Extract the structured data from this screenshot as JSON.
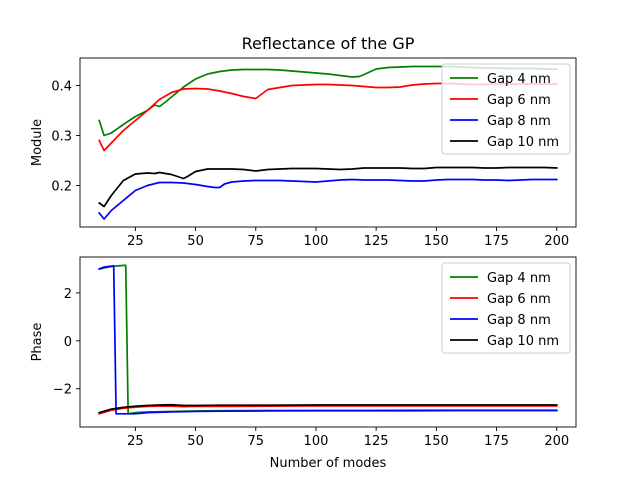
{
  "chart_data": [
    {
      "type": "line",
      "title": "Reflectance of the GP",
      "xlabel": "",
      "ylabel": "Module",
      "xlim": [
        2,
        208
      ],
      "ylim": [
        0.117,
        0.455
      ],
      "xticks": [
        25,
        50,
        75,
        100,
        125,
        150,
        175,
        200
      ],
      "yticks": [
        0.2,
        0.3,
        0.4
      ],
      "ytick_labels": [
        "0.2",
        "0.3",
        "0.4"
      ],
      "grid": false,
      "legend_position": "top-right",
      "colors": {
        "Gap 4 nm": "#008000",
        "Gap 6 nm": "#ff0000",
        "Gap 8 nm": "#0000ff",
        "Gap 10 nm": "#000000"
      },
      "series": [
        {
          "name": "Gap 4 nm",
          "x": [
            10,
            12,
            15,
            20,
            25,
            30,
            33,
            35,
            37,
            40,
            45,
            50,
            55,
            60,
            65,
            70,
            75,
            80,
            85,
            90,
            95,
            100,
            105,
            110,
            115,
            118,
            120,
            125,
            130,
            135,
            140,
            145,
            150,
            155,
            160,
            165,
            170,
            175,
            180,
            185,
            190,
            195,
            200
          ],
          "y": [
            0.33,
            0.3,
            0.305,
            0.322,
            0.338,
            0.35,
            0.361,
            0.358,
            0.365,
            0.377,
            0.397,
            0.413,
            0.423,
            0.428,
            0.431,
            0.432,
            0.432,
            0.432,
            0.431,
            0.429,
            0.427,
            0.425,
            0.423,
            0.42,
            0.417,
            0.418,
            0.422,
            0.433,
            0.436,
            0.437,
            0.438,
            0.438,
            0.438,
            0.438,
            0.437,
            0.436,
            0.435,
            0.435,
            0.434,
            0.434,
            0.434,
            0.433,
            0.433
          ]
        },
        {
          "name": "Gap 6 nm",
          "x": [
            10,
            12,
            15,
            20,
            25,
            30,
            35,
            40,
            45,
            50,
            55,
            60,
            65,
            70,
            75,
            80,
            85,
            90,
            95,
            100,
            105,
            110,
            115,
            120,
            125,
            130,
            135,
            140,
            145,
            150,
            155,
            160,
            165,
            170,
            175,
            180,
            185,
            190,
            195,
            200
          ],
          "y": [
            0.29,
            0.27,
            0.285,
            0.31,
            0.33,
            0.35,
            0.372,
            0.386,
            0.393,
            0.394,
            0.393,
            0.389,
            0.384,
            0.378,
            0.374,
            0.392,
            0.396,
            0.4,
            0.401,
            0.402,
            0.402,
            0.401,
            0.4,
            0.398,
            0.396,
            0.396,
            0.397,
            0.401,
            0.403,
            0.404,
            0.404,
            0.403,
            0.402,
            0.402,
            0.403,
            0.403,
            0.403,
            0.403,
            0.403,
            0.403
          ]
        },
        {
          "name": "Gap 8 nm",
          "x": [
            10,
            12,
            15,
            20,
            25,
            30,
            35,
            40,
            45,
            50,
            55,
            58,
            60,
            62,
            65,
            70,
            75,
            80,
            85,
            90,
            95,
            100,
            105,
            110,
            115,
            120,
            125,
            130,
            135,
            140,
            145,
            150,
            155,
            160,
            165,
            170,
            175,
            180,
            185,
            190,
            195,
            200
          ],
          "y": [
            0.145,
            0.133,
            0.15,
            0.17,
            0.19,
            0.2,
            0.206,
            0.206,
            0.205,
            0.202,
            0.198,
            0.196,
            0.196,
            0.203,
            0.207,
            0.209,
            0.21,
            0.21,
            0.21,
            0.209,
            0.208,
            0.207,
            0.209,
            0.211,
            0.212,
            0.211,
            0.211,
            0.211,
            0.21,
            0.209,
            0.209,
            0.211,
            0.212,
            0.212,
            0.212,
            0.211,
            0.211,
            0.21,
            0.211,
            0.212,
            0.212,
            0.212
          ]
        },
        {
          "name": "Gap 10 nm",
          "x": [
            10,
            12,
            15,
            20,
            25,
            30,
            33,
            35,
            40,
            45,
            47,
            50,
            55,
            60,
            65,
            70,
            75,
            80,
            85,
            90,
            95,
            100,
            105,
            110,
            115,
            120,
            125,
            130,
            135,
            140,
            145,
            150,
            155,
            160,
            165,
            170,
            175,
            180,
            185,
            190,
            195,
            200
          ],
          "y": [
            0.165,
            0.158,
            0.18,
            0.21,
            0.223,
            0.225,
            0.224,
            0.226,
            0.222,
            0.214,
            0.219,
            0.228,
            0.233,
            0.233,
            0.233,
            0.232,
            0.229,
            0.232,
            0.233,
            0.234,
            0.234,
            0.234,
            0.233,
            0.232,
            0.233,
            0.235,
            0.235,
            0.235,
            0.235,
            0.234,
            0.234,
            0.236,
            0.236,
            0.236,
            0.236,
            0.235,
            0.235,
            0.236,
            0.236,
            0.236,
            0.236,
            0.235
          ]
        }
      ]
    },
    {
      "type": "line",
      "title": "",
      "xlabel": "Number of modes",
      "ylabel": "Phase",
      "xlim": [
        2,
        208
      ],
      "ylim": [
        -3.6,
        3.5
      ],
      "xticks": [
        25,
        50,
        75,
        100,
        125,
        150,
        175,
        200
      ],
      "yticks": [
        -2,
        0,
        2
      ],
      "ytick_labels": [
        "−2",
        "0",
        "2"
      ],
      "grid": false,
      "legend_position": "top-right",
      "colors": {
        "Gap 4 nm": "#008000",
        "Gap 6 nm": "#ff0000",
        "Gap 8 nm": "#0000ff",
        "Gap 10 nm": "#000000"
      },
      "series": [
        {
          "name": "Gap 4 nm",
          "x": [
            10,
            15,
            20,
            21,
            22,
            25,
            30,
            40,
            50,
            60,
            80,
            100,
            120,
            140,
            160,
            180,
            200
          ],
          "y": [
            3.0,
            3.1,
            3.15,
            3.15,
            -3.05,
            -3.0,
            -2.97,
            -2.95,
            -2.93,
            -2.92,
            -2.91,
            -2.91,
            -2.91,
            -2.9,
            -2.9,
            -2.9,
            -2.9
          ]
        },
        {
          "name": "Gap 6 nm",
          "x": [
            10,
            15,
            20,
            25,
            30,
            35,
            40,
            45,
            50,
            60,
            80,
            100,
            120,
            140,
            160,
            180,
            200
          ],
          "y": [
            -3.05,
            -2.9,
            -2.82,
            -2.77,
            -2.74,
            -2.73,
            -2.73,
            -2.75,
            -2.74,
            -2.74,
            -2.73,
            -2.72,
            -2.72,
            -2.72,
            -2.72,
            -2.72,
            -2.72
          ]
        },
        {
          "name": "Gap 8 nm",
          "x": [
            10,
            12,
            15,
            16,
            17,
            20,
            25,
            30,
            40,
            50,
            60,
            80,
            100,
            120,
            140,
            160,
            180,
            200
          ],
          "y": [
            3.0,
            3.08,
            3.12,
            3.13,
            -3.05,
            -3.05,
            -3.05,
            -3.0,
            -2.97,
            -2.95,
            -2.94,
            -2.93,
            -2.92,
            -2.92,
            -2.92,
            -2.91,
            -2.91,
            -2.91
          ]
        },
        {
          "name": "Gap 10 nm",
          "x": [
            10,
            15,
            20,
            25,
            30,
            35,
            40,
            45,
            50,
            60,
            80,
            100,
            120,
            140,
            160,
            180,
            200
          ],
          "y": [
            -3.0,
            -2.85,
            -2.78,
            -2.73,
            -2.7,
            -2.68,
            -2.67,
            -2.7,
            -2.7,
            -2.69,
            -2.69,
            -2.68,
            -2.68,
            -2.68,
            -2.68,
            -2.68,
            -2.68
          ]
        }
      ]
    }
  ]
}
